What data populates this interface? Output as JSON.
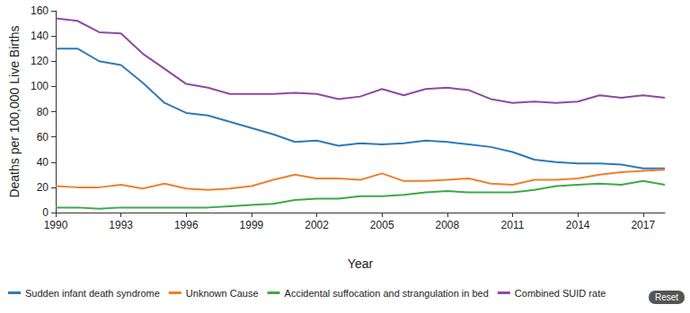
{
  "chart_data": {
    "type": "line",
    "x_label": "Year",
    "y_label": "Deaths per 100,000 Live Births",
    "x": [
      1990,
      1991,
      1992,
      1993,
      1994,
      1995,
      1996,
      1997,
      1998,
      1999,
      2000,
      2001,
      2002,
      2003,
      2004,
      2005,
      2006,
      2007,
      2008,
      2009,
      2010,
      2011,
      2012,
      2013,
      2014,
      2015,
      2016,
      2017,
      2018
    ],
    "series": [
      {
        "name": "Sudden infant death syndrome",
        "color": "#2f7ab8",
        "values": [
          130,
          130,
          120,
          117,
          103,
          87,
          79,
          77,
          72,
          67,
          62,
          56,
          57,
          53,
          55,
          54,
          55,
          57,
          56,
          54,
          52,
          48,
          42,
          40,
          39,
          39,
          38,
          35,
          35
        ]
      },
      {
        "name": "Unknown Cause",
        "color": "#f07f2c",
        "values": [
          21,
          20,
          20,
          22,
          19,
          23,
          19,
          18,
          19,
          21,
          26,
          30,
          27,
          27,
          26,
          31,
          25,
          25,
          26,
          27,
          23,
          22,
          26,
          26,
          27,
          30,
          32,
          33,
          34
        ]
      },
      {
        "name": "Accidental suffocation and strangulation in bed",
        "color": "#3daa48",
        "values": [
          4,
          4,
          3,
          4,
          4,
          4,
          4,
          4,
          5,
          6,
          7,
          10,
          11,
          11,
          13,
          13,
          14,
          16,
          17,
          16,
          16,
          16,
          18,
          21,
          22,
          23,
          22,
          25,
          22
        ]
      },
      {
        "name": "Combined SUID rate",
        "color": "#8e4aa3",
        "values": [
          154,
          152,
          143,
          142,
          126,
          114,
          102,
          99,
          94,
          94,
          94,
          95,
          94,
          90,
          92,
          98,
          93,
          98,
          99,
          97,
          90,
          87,
          88,
          87,
          88,
          93,
          91,
          93,
          91
        ]
      }
    ],
    "xlim": [
      1990,
      2018
    ],
    "xticks": [
      1990,
      1993,
      1996,
      1999,
      2002,
      2005,
      2008,
      2011,
      2014,
      2017
    ],
    "ylim": [
      0,
      160
    ],
    "yticks": [
      0,
      20,
      40,
      60,
      80,
      100,
      120,
      140,
      160
    ],
    "grid": false,
    "legend": "bottom",
    "annotations": [
      "Reset"
    ]
  }
}
